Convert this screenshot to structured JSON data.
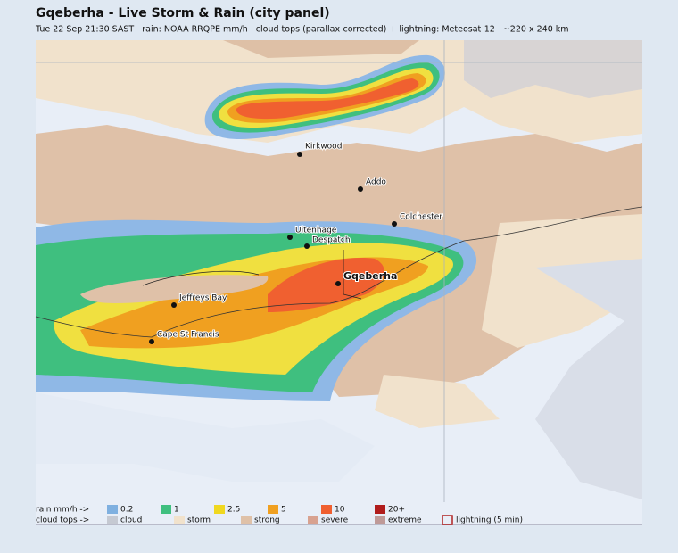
{
  "header": {
    "title": "Gqeberha - Live Storm & Rain (city panel)",
    "subtitle": "Tue 22 Sep 21:30 SAST   rain: NOAA RRQPE mm/h   cloud tops (parallax-corrected) + lightning: Meteosat-12   ~220 x 240 km"
  },
  "places": {
    "kirkwood": "Kirkwood",
    "addo": "Addo",
    "colchester": "Colchester",
    "uitenhage": "Uitenhage",
    "despatch": "Despatch",
    "gqeberha": "Gqeberha",
    "jeffreys_bay": "Jeffreys Bay",
    "cape_st_francis": "Cape St Francis"
  },
  "legend": {
    "rain_label": "rain mm/h ->",
    "rain": [
      "0.2",
      "1",
      "2.5",
      "5",
      "10",
      "20+"
    ],
    "cloud_label": "cloud tops ->",
    "cloud": [
      "cloud",
      "storm",
      "strong",
      "severe",
      "extreme"
    ],
    "lightning": "lightning (5 min)"
  }
}
